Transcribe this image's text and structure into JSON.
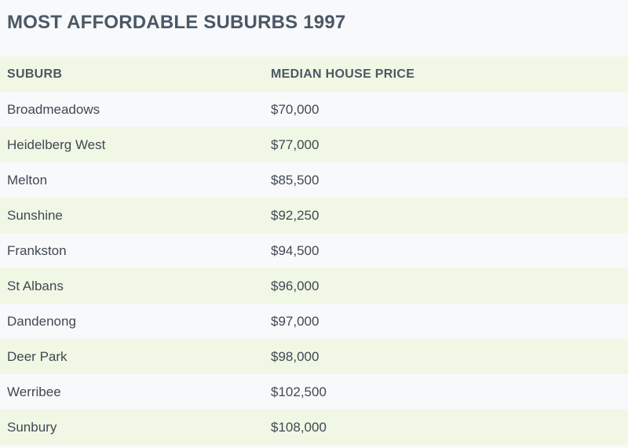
{
  "title": "MOST AFFORDABLE SUBURBS 1997",
  "table": {
    "headers": [
      "SUBURB",
      "MEDIAN HOUSE PRICE"
    ],
    "rows": [
      [
        "Broadmeadows",
        "$70,000"
      ],
      [
        "Heidelberg West",
        "$77,000"
      ],
      [
        "Melton",
        "$85,500"
      ],
      [
        "Sunshine",
        "$92,250"
      ],
      [
        "Frankston",
        "$94,500"
      ],
      [
        "St Albans",
        "$96,000"
      ],
      [
        "Dandenong",
        "$97,000"
      ],
      [
        "Deer Park",
        "$98,000"
      ],
      [
        "Werribee",
        "$102,500"
      ],
      [
        "Sunbury",
        "$108,000"
      ]
    ]
  },
  "colors": {
    "text": "#3e4a56",
    "row_shade": "#f0f7e4",
    "background": "#f8f9fa"
  }
}
